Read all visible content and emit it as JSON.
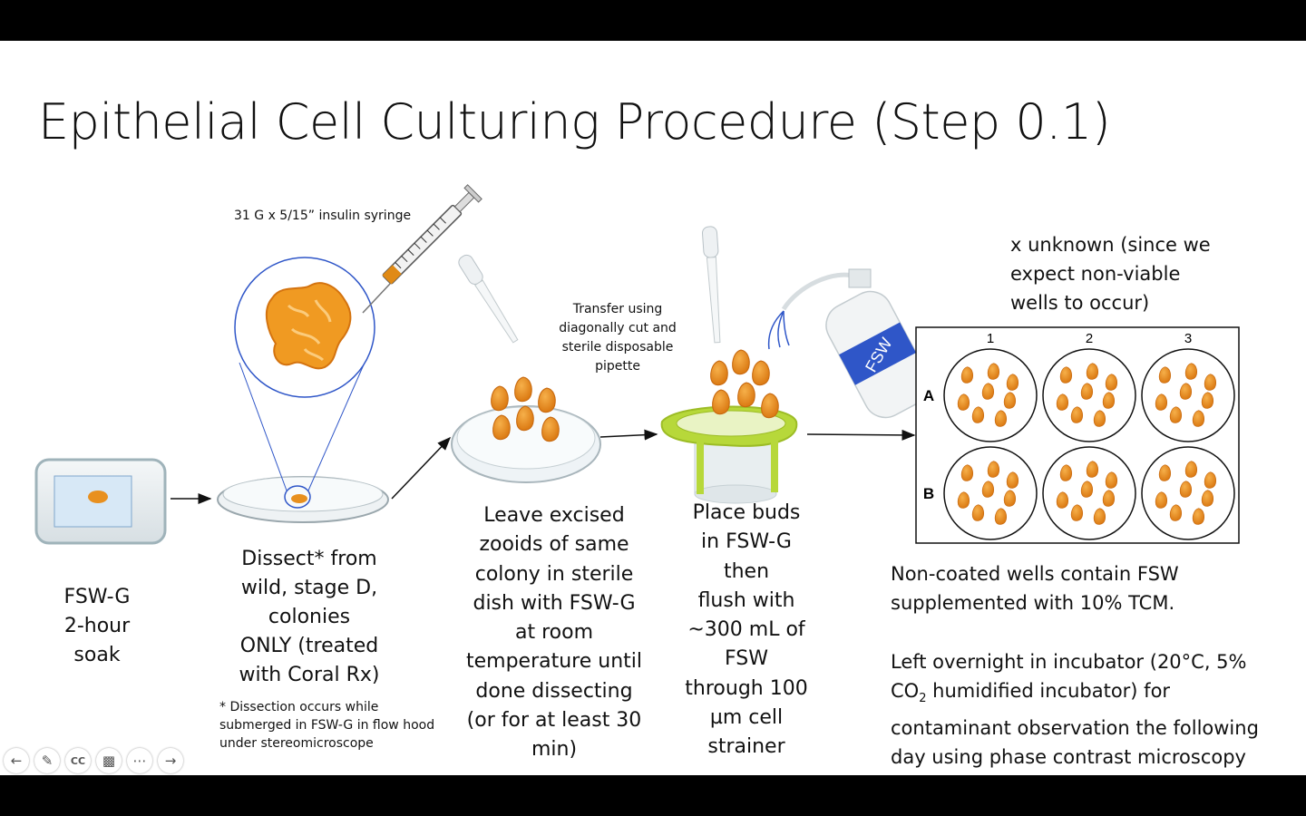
{
  "title": "Epithelial Cell Culturing Procedure (Step 0.1)",
  "labels": {
    "syringe": "31 G x 5/15” insulin syringe",
    "soak": "FSW-G\n2-hour\nsoak",
    "dissect": "Dissect* from\nwild, stage D,\ncolonies\nONLY (treated\nwith Coral Rx)",
    "dissect_note": "* Dissection occurs while\nsubmerged in FSW-G in flow hood\nunder stereomicroscope",
    "transfer": "Transfer using\ndiagonally cut and\nsterile disposable\npipette",
    "leave": "Leave excised\nzooids of same\ncolony in sterile\ndish with FSW-G\nat room\ntemperature until\ndone dissecting\n(or for at least 30\nmin)",
    "place": "Place buds\nin FSW-G\nthen\nflush with\n~300 mL of\nFSW\nthrough 100\nµm cell\nstrainer",
    "x_unknown": "x unknown (since we\nexpect non-viable\nwells to occur)",
    "non_coated": "Non-coated wells contain FSW\nsupplemented with 10% TCM.",
    "overnight_1": "Left overnight in incubator (20°C, 5%",
    "overnight_co": "CO",
    "overnight_sub": "2",
    "overnight_2": " humidified incubator) for",
    "overnight_3": "contaminant observation the following\nday using phase contrast microscopy",
    "bottle_label": "FSW"
  },
  "plate": {
    "columns": [
      "1",
      "2",
      "3"
    ],
    "rows": [
      "A",
      "B"
    ]
  },
  "colors": {
    "bud": "#e8901f",
    "bud_dark": "#c86a10",
    "strainer": "#b7d83a",
    "bottle_label": "#2f56c8"
  },
  "toolbar": [
    "back-icon",
    "pen-icon",
    "cc-icon",
    "video-off-icon",
    "more-icon",
    "forward-icon"
  ]
}
